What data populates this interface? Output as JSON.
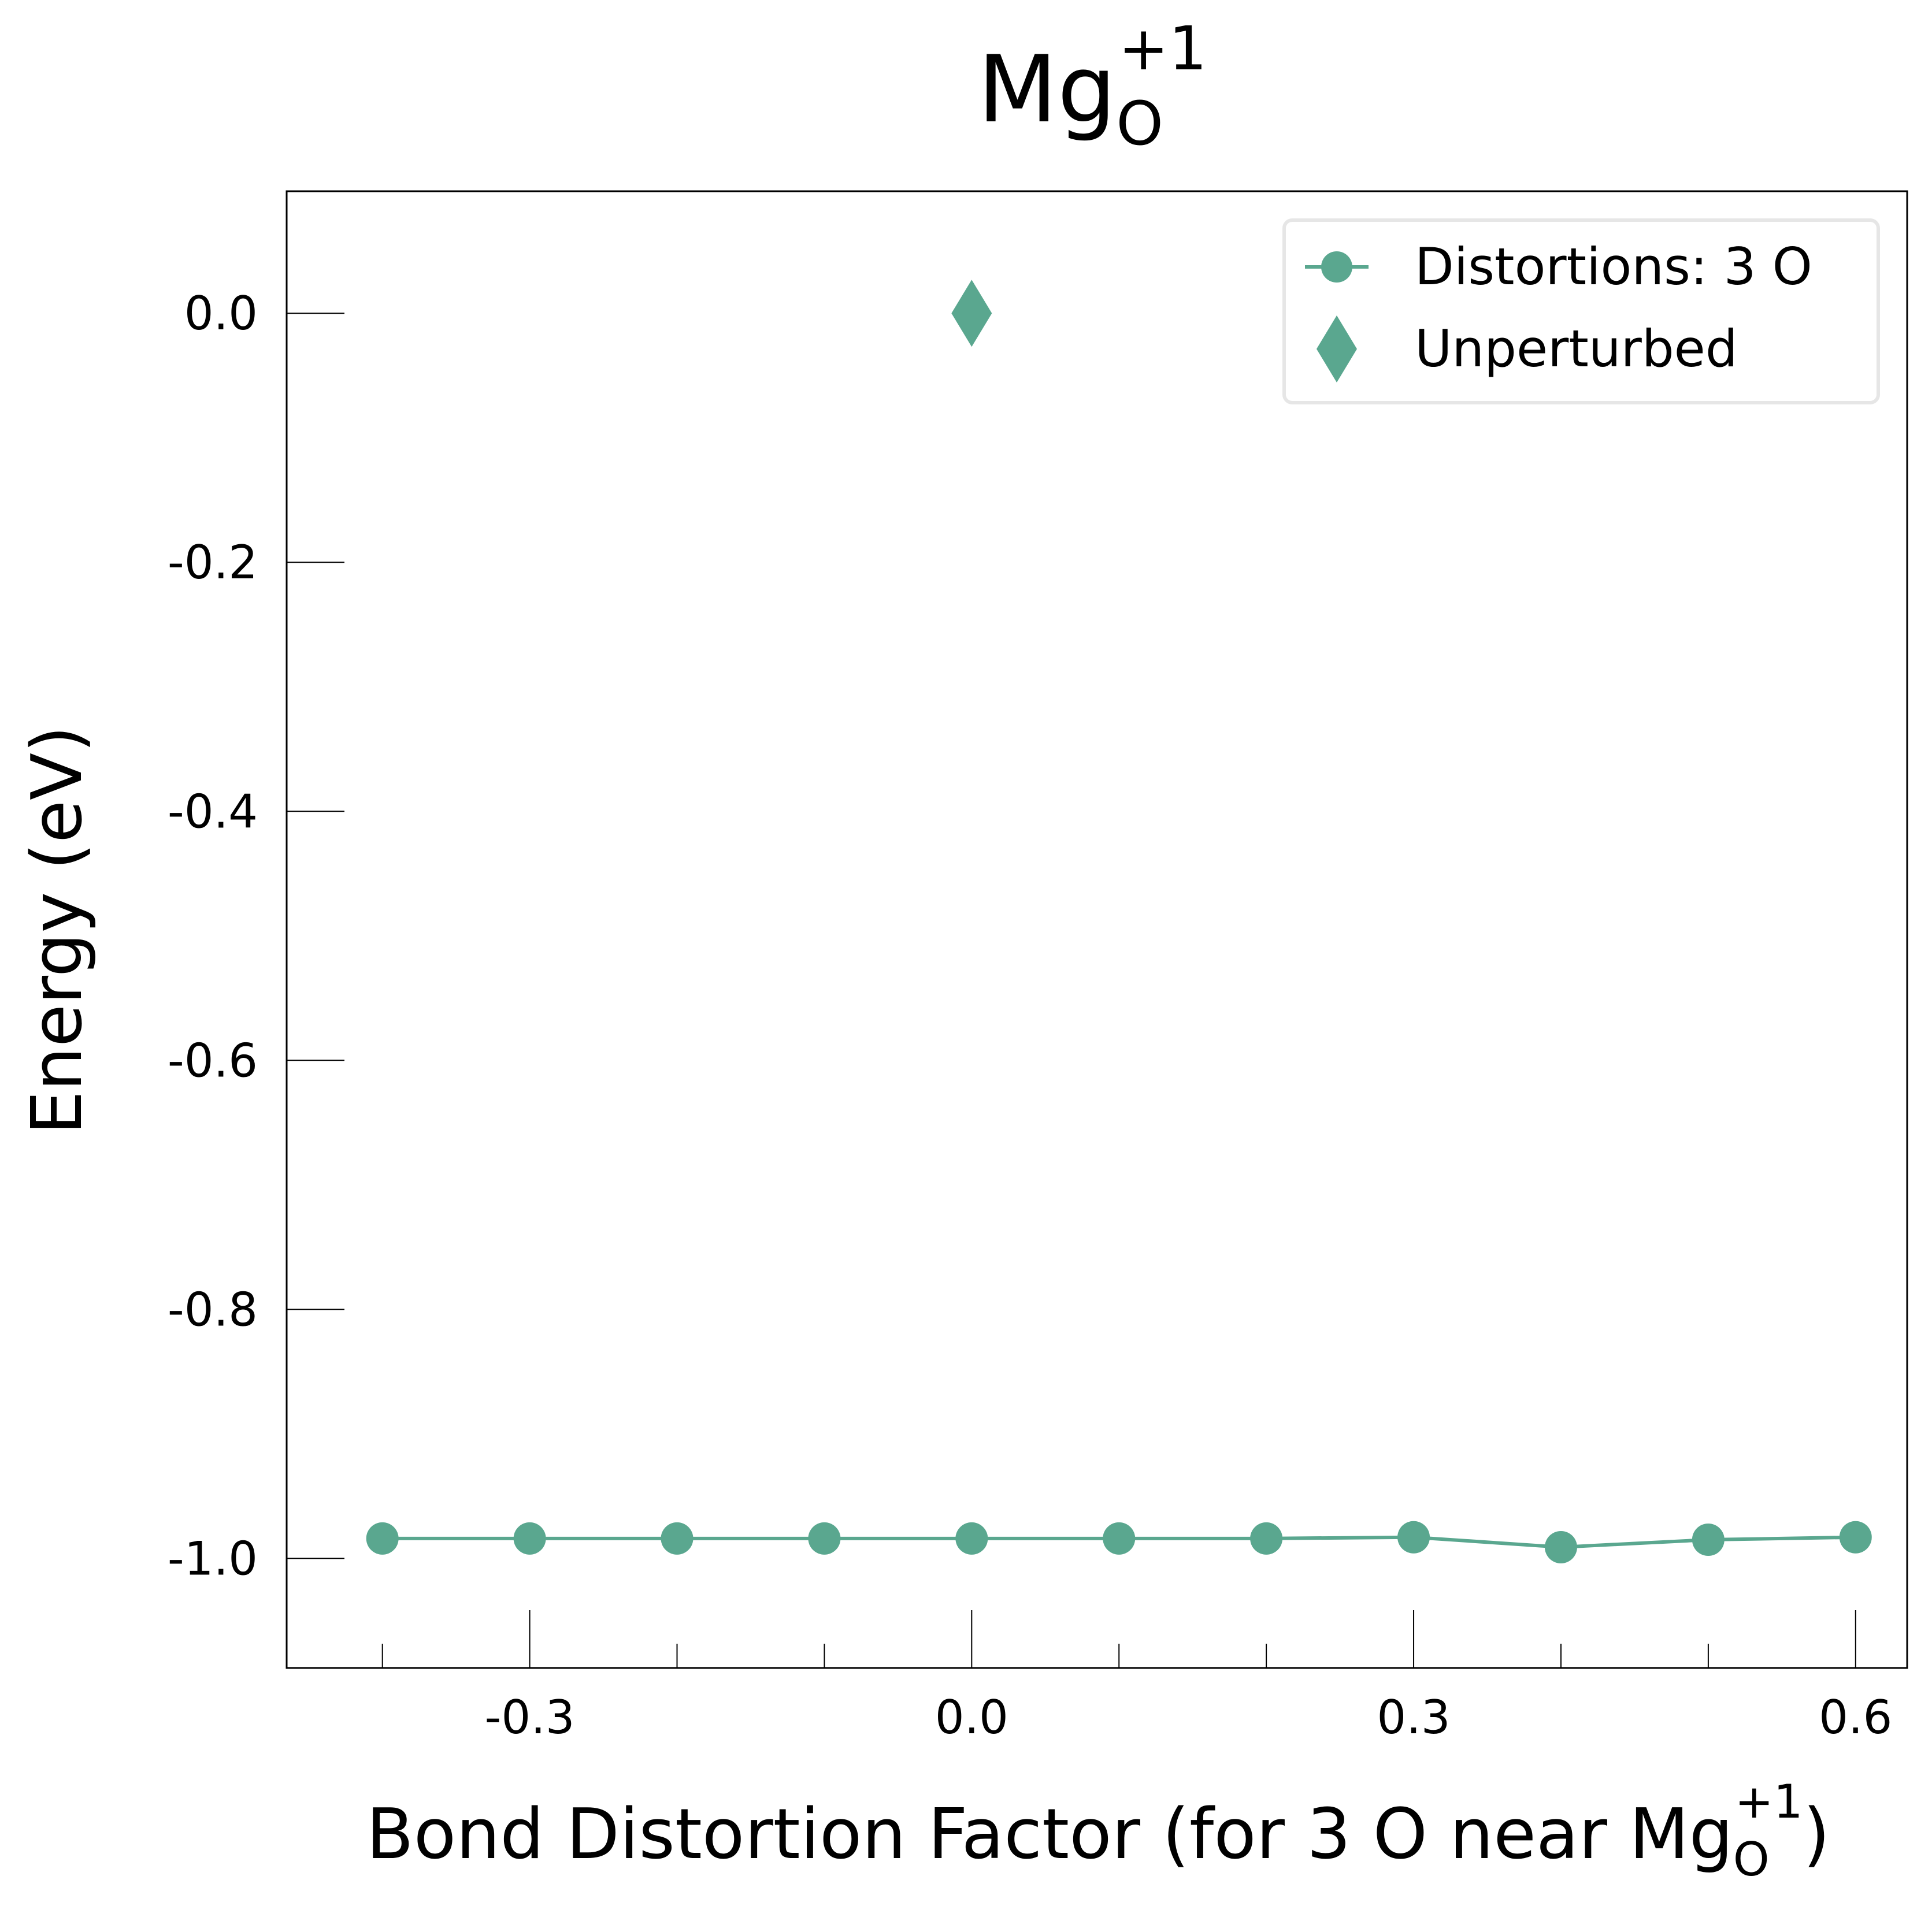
{
  "chart_data": {
    "type": "line",
    "title": {
      "main": "Mg",
      "sub": "O",
      "sup": "+1"
    },
    "xlabel": {
      "main": "Bond Distortion Factor (for 3 O near Mg",
      "sub": "O",
      "sup": "+1",
      "tail": ")"
    },
    "ylabel": "Energy (eV)",
    "xlim": [
      -0.465,
      0.635
    ],
    "ylim": [
      -1.088,
      0.098
    ],
    "xticks": [
      -0.3,
      0.0,
      0.3,
      0.6
    ],
    "xtick_labels": [
      "-0.3",
      "0.0",
      "0.3",
      "0.6"
    ],
    "x_minor_ticks": [
      -0.4,
      -0.2,
      -0.1,
      0.1,
      0.2,
      0.4,
      0.5
    ],
    "yticks": [
      0.0,
      -0.2,
      -0.4,
      -0.6,
      -0.8,
      -1.0
    ],
    "ytick_labels": [
      "0.0",
      "-0.2",
      "-0.4",
      "-0.6",
      "-0.8",
      "-1.0"
    ],
    "grid": false,
    "legend_position": "top-right",
    "series": [
      {
        "name": "Distortions: 3 O",
        "marker": "circle",
        "color": "#5aa78f",
        "x": [
          -0.4,
          -0.3,
          -0.2,
          -0.1,
          0.0,
          0.1,
          0.2,
          0.3,
          0.4,
          0.5,
          0.6
        ],
        "y": [
          -0.984,
          -0.984,
          -0.984,
          -0.984,
          -0.984,
          -0.984,
          -0.984,
          -0.983,
          -0.991,
          -0.985,
          -0.983
        ]
      },
      {
        "name": "Unperturbed",
        "marker": "diamond",
        "color": "#5aa78f",
        "x": [
          0.0
        ],
        "y": [
          0.0
        ]
      }
    ]
  }
}
